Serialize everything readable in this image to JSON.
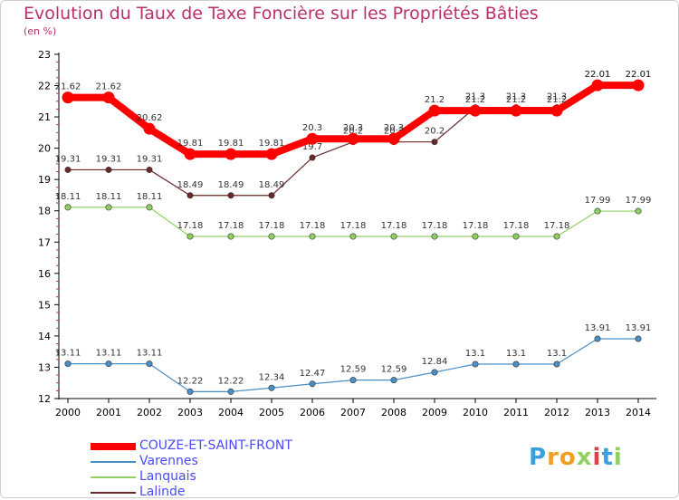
{
  "chart_data": {
    "type": "line",
    "title": "Evolution du Taux de Taxe Foncière sur les Propriétés Bâties",
    "unit_label": "(en %)",
    "xlabel": "",
    "ylabel": "",
    "ylim": [
      12,
      23
    ],
    "categories": [
      "2000",
      "2001",
      "2002",
      "2003",
      "2004",
      "2005",
      "2006",
      "2007",
      "2008",
      "2009",
      "2010",
      "2011",
      "2012",
      "2013",
      "2014"
    ],
    "y_ticks": [
      12,
      13,
      14,
      15,
      16,
      17,
      18,
      19,
      20,
      21,
      22,
      23
    ],
    "series": [
      {
        "name": "Varennes",
        "color": "#4a90c8",
        "values": [
          13.11,
          13.11,
          13.11,
          12.22,
          12.22,
          12.34,
          12.47,
          12.59,
          12.59,
          12.84,
          13.1,
          13.1,
          13.1,
          13.91,
          13.91
        ]
      },
      {
        "name": "Lanquais",
        "color": "#8fd060",
        "values": [
          18.11,
          18.11,
          18.11,
          17.18,
          17.18,
          17.18,
          17.18,
          17.18,
          17.18,
          17.18,
          17.18,
          17.18,
          17.18,
          17.99,
          17.99
        ]
      },
      {
        "name": "Lalinde",
        "color": "#6b2a2a",
        "values": [
          19.31,
          19.31,
          19.31,
          18.49,
          18.49,
          18.49,
          19.7,
          20.2,
          20.2,
          20.2,
          21.3,
          21.3,
          21.3,
          22.01,
          22.01
        ]
      },
      {
        "name": "COUZE-ET-SAINT-FRONT",
        "color": "#ff0000",
        "values": [
          21.62,
          21.62,
          20.62,
          19.81,
          19.81,
          19.81,
          20.3,
          20.3,
          20.3,
          21.2,
          21.2,
          21.2,
          21.2,
          22.01,
          22.01
        ]
      }
    ],
    "value_labels": {
      "Varennes": [
        "13.11",
        "13.11",
        "13.11",
        "12.22",
        "12.22",
        "12.34",
        "12.47",
        "12.59",
        "12.59",
        "12.84",
        "13.1",
        "13.1",
        "13.1",
        "13.91",
        "13.91"
      ],
      "Lanquais": [
        "18.11",
        "18.11",
        "18.11",
        "17.18",
        "17.18",
        "17.18",
        "17.18",
        "17.18",
        "17.18",
        "17.18",
        "17.18",
        "17.18",
        "17.18",
        "17.99",
        "17.99"
      ],
      "Lalinde": [
        "19.31",
        "19.31",
        "19.31",
        "18.49",
        "18.49",
        "18.49",
        "19.7",
        "20.2",
        "20.2",
        "20.2",
        "21.3",
        "21.3",
        "21.3",
        "22.01",
        "22.01"
      ],
      "COUZE-ET-SAINT-FRONT": [
        "21.62",
        "21.62",
        "20.62",
        "19.81",
        "19.81",
        "19.81",
        "20.3",
        "20.3",
        "20.3",
        "21.2",
        "21.2",
        "21.2",
        "21.2",
        "22.01",
        "22.01"
      ]
    },
    "legend": [
      "COUZE-ET-SAINT-FRONT",
      "Varennes",
      "Lanquais",
      "Lalinde"
    ],
    "legend_position": "bottom-left",
    "grid": false
  },
  "brand": {
    "letters": [
      "P",
      "r",
      "o",
      "x",
      "i",
      "t",
      "i"
    ],
    "colors": [
      "#3aa0e0",
      "#f0a020",
      "#f0a020",
      "#8fd060",
      "#e04040",
      "#3aa0e0",
      "#8fd060"
    ]
  }
}
